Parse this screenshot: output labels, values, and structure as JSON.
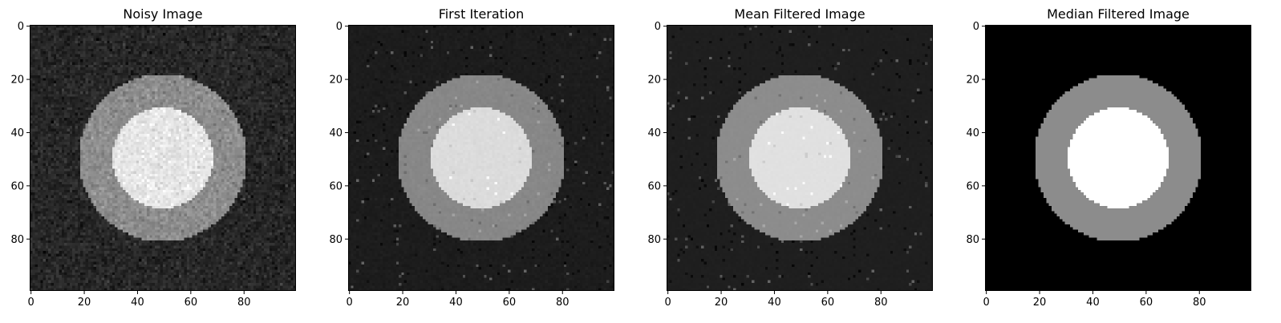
{
  "chart_data": [
    {
      "type": "heatmap",
      "title": "Noisy Image",
      "style": "noisy",
      "colormap": "gray",
      "image_size": [
        100,
        100
      ],
      "xlim": [
        0,
        99
      ],
      "ylim": [
        99,
        0
      ],
      "x_ticks": [
        0,
        20,
        40,
        60,
        80
      ],
      "y_ticks": [
        0,
        20,
        40,
        60,
        80
      ],
      "center": [
        49.5,
        49.5
      ],
      "inner_radius": 19,
      "outer_radius": 31.5,
      "intensity": {
        "background": 0.15,
        "ring": 0.55,
        "disk": 0.9
      },
      "noise_std": 0.04
    },
    {
      "type": "heatmap",
      "title": "First Iteration",
      "style": "speckled",
      "colormap": "gray",
      "image_size": [
        100,
        100
      ],
      "xlim": [
        0,
        99
      ],
      "ylim": [
        99,
        0
      ],
      "x_ticks": [
        0,
        20,
        40,
        60,
        80
      ],
      "y_ticks": [
        0,
        20,
        40,
        60,
        80
      ],
      "center": [
        49.5,
        49.5
      ],
      "inner_radius": 19,
      "outer_radius": 31.5,
      "intensity": {
        "background": 0.11,
        "ring": 0.53,
        "disk": 0.86
      },
      "noise_std": 0.008
    },
    {
      "type": "heatmap",
      "title": "Mean Filtered Image",
      "style": "speckled",
      "colormap": "gray",
      "image_size": [
        100,
        100
      ],
      "xlim": [
        0,
        99
      ],
      "ylim": [
        99,
        0
      ],
      "x_ticks": [
        0,
        20,
        40,
        60,
        80
      ],
      "y_ticks": [
        0,
        20,
        40,
        60,
        80
      ],
      "center": [
        49.5,
        49.5
      ],
      "inner_radius": 19,
      "outer_radius": 31.5,
      "intensity": {
        "background": 0.12,
        "ring": 0.55,
        "disk": 0.88
      },
      "noise_std": 0.003
    },
    {
      "type": "heatmap",
      "title": "Median Filtered Image",
      "style": "clean",
      "colormap": "gray",
      "image_size": [
        100,
        100
      ],
      "xlim": [
        0,
        99
      ],
      "ylim": [
        99,
        0
      ],
      "x_ticks": [
        0,
        20,
        40,
        60,
        80
      ],
      "y_ticks": [
        0,
        20,
        40,
        60,
        80
      ],
      "center": [
        49.5,
        49.5
      ],
      "inner_radius": 19,
      "outer_radius": 31.5,
      "intensity": {
        "background": 0.0,
        "ring": 0.55,
        "disk": 1.0
      },
      "noise_std": 0
    }
  ]
}
